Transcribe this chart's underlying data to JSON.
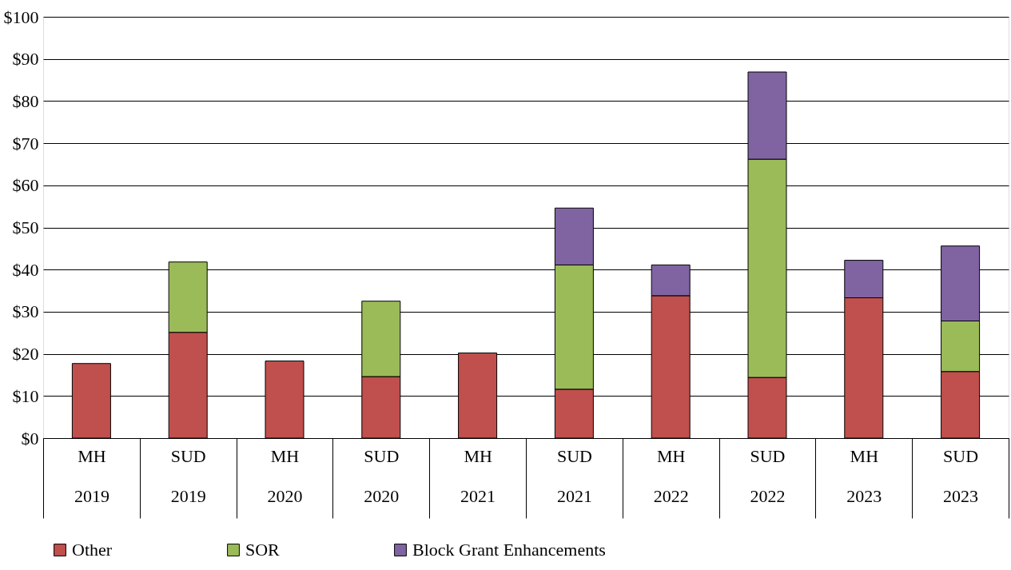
{
  "chart_data": {
    "type": "bar",
    "stacked": true,
    "categories": [
      "MH 2019",
      "SUD 2019",
      "MH 2020",
      "SUD 2020",
      "MH 2021",
      "SUD 2021",
      "MH 2022",
      "SUD 2022",
      "MH 2023",
      "SUD 2023"
    ],
    "series": [
      {
        "name": "Other",
        "color": "#c0504d",
        "values": [
          17.7,
          25.1,
          18.3,
          14.6,
          20.2,
          11.6,
          33.8,
          14.4,
          33.3,
          15.8
        ]
      },
      {
        "name": "SOR",
        "color": "#9bbb59",
        "values": [
          null,
          16.7,
          null,
          17.9,
          null,
          29.5,
          null,
          51.8,
          null,
          12.0
        ]
      },
      {
        "name": "Block Grant Enhancements",
        "color": "#8064a2",
        "values": [
          null,
          null,
          null,
          null,
          null,
          13.5,
          7.3,
          20.7,
          8.9,
          17.8
        ]
      }
    ],
    "ylim": [
      0,
      100
    ],
    "yticks": [
      {
        "value": 0,
        "label": "$0"
      },
      {
        "value": 10,
        "label": "$10"
      },
      {
        "value": 20,
        "label": "$20"
      },
      {
        "value": 30,
        "label": "$30"
      },
      {
        "value": 40,
        "label": "$40"
      },
      {
        "value": 50,
        "label": "$50"
      },
      {
        "value": 60,
        "label": "$60"
      },
      {
        "value": 70,
        "label": "$70"
      },
      {
        "value": 80,
        "label": "$80"
      },
      {
        "value": 90,
        "label": "$90"
      },
      {
        "value": 100,
        "label": "$100"
      }
    ],
    "grid": "y",
    "legend": "bottom"
  }
}
